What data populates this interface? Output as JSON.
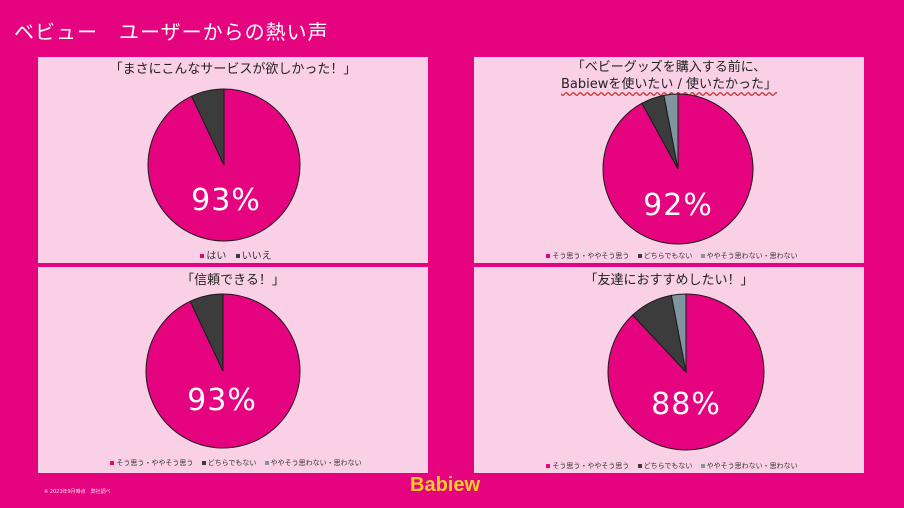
{
  "slide_title": "ベビュー　ユーザーからの熱い声",
  "footnote": "※ 2023年9月時点　弊社調べ",
  "logo": "Babiew",
  "colors": {
    "agree": "#e6037f",
    "neutral": "#3c3c3c",
    "disagree": "#7f96a0",
    "panel": "#fad0e6"
  },
  "chart_data": [
    {
      "type": "pie",
      "title": "「まさにこんなサービスが欲しかった！」",
      "categories": [
        "はい",
        "いいえ"
      ],
      "values": [
        93,
        7
      ],
      "display": "93%",
      "legend": [
        "はい",
        "いいえ"
      ]
    },
    {
      "type": "pie",
      "title": "「ベビーグッズを購入する前に、",
      "subtitle": "Babiewを使いたい / 使いたかった」",
      "categories": [
        "そう思う・ややそう思う",
        "どちらでもない",
        "ややそう思わない・思わない"
      ],
      "values": [
        92,
        5,
        3
      ],
      "display": "92%",
      "legend": [
        "そう思う・ややそう思う",
        "どちらでもない",
        "ややそう思わない・思わない"
      ]
    },
    {
      "type": "pie",
      "title": "「信頼できる！」",
      "categories": [
        "そう思う・ややそう思う",
        "どちらでもない",
        "ややそう思わない・思わない"
      ],
      "values": [
        93,
        7,
        0
      ],
      "display": "93%",
      "legend": [
        "そう思う・ややそう思う",
        "どちらでもない",
        "ややそう思わない・思わない"
      ]
    },
    {
      "type": "pie",
      "title": "「友達におすすめしたい！」",
      "categories": [
        "そう思う・ややそう思う",
        "どちらでもない",
        "ややそう思わない・思わない"
      ],
      "values": [
        88,
        9,
        3
      ],
      "display": "88%",
      "legend": [
        "そう思う・ややそう思う",
        "どちらでもない",
        "ややそう思わない・思わない"
      ]
    }
  ]
}
